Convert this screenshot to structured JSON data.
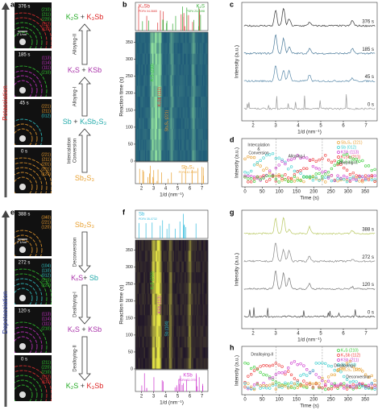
{
  "side": {
    "top": "Potassiation",
    "bottom": "Depotassiation"
  },
  "a": {
    "label": "a",
    "frames": [
      {
        "time": "376 s",
        "scale": "2 1/nm",
        "hkl": [
          "(210)",
          "(211)",
          "(220)",
          "(112)",
          "(110)"
        ],
        "colors": [
          "#3c3",
          "#3c3",
          "#3c3",
          "#e33",
          "#e33"
        ]
      },
      {
        "time": "185 s",
        "hkl": [
          "(113)",
          "(114)",
          "(111)",
          "(210)"
        ],
        "colors": [
          "#c3c",
          "#c3c",
          "#c3c",
          "#3c3"
        ]
      },
      {
        "time": "45 s",
        "hkl": [
          "(221)",
          "(211)",
          "(012)"
        ],
        "colors": [
          "#f0a030",
          "#f0a030",
          "#3cc"
        ]
      },
      {
        "time": "0 s",
        "hkl": [
          "(221)",
          "(211)",
          "(201)",
          "(101)",
          "(120)"
        ],
        "colors": [
          "#f0a030",
          "#f0a030",
          "#f0a030",
          "#f0a030",
          "#f0a030"
        ]
      }
    ],
    "stages": [
      [
        {
          "t": "K₂S",
          "c": "#2a2"
        },
        {
          "t": " + ",
          "c": "#333"
        },
        {
          "t": "K₃Sb",
          "c": "#d22"
        }
      ],
      [
        {
          "t": "KₓS",
          "c": "#a3a"
        },
        {
          "t": " + ",
          "c": "#333"
        },
        {
          "t": "KSb",
          "c": "#a3a"
        }
      ],
      [
        {
          "t": "Sb",
          "c": "#2aa"
        },
        {
          "t": " + ",
          "c": "#333"
        },
        {
          "t": "KₓSb₂S₃",
          "c": "#2aa"
        }
      ],
      [
        {
          "t": "Sb₂S₃",
          "c": "#e8a030"
        }
      ]
    ],
    "transitions": [
      [
        "Alloying-II"
      ],
      [
        "Alloying-I"
      ],
      [
        "Intercalation",
        "Conversion"
      ]
    ]
  },
  "b": {
    "label": "b",
    "ref_top": [
      {
        "name": "K₃Sb",
        "pdf": "PDF# 04-0665",
        "color": "#d33"
      },
      {
        "name": "K₂S",
        "pdf": "PDF# 23-0498",
        "color": "#3a3"
      }
    ],
    "ref_bottom": {
      "name": "Sb₂S₃",
      "pdf": "PDF# 42-1393",
      "color": "#e8a030"
    },
    "ylabel": "Reaction time (s)",
    "yticks": [
      0,
      50,
      100,
      150,
      200,
      250,
      300,
      350
    ],
    "xlabel": "1/d (nm⁻¹)",
    "xticks": [
      2,
      3,
      4,
      5,
      6,
      7
    ],
    "annotations": [
      {
        "text": "K₂S (210)",
        "color": "#3c3"
      },
      {
        "text": "K₃Sb (112)",
        "color": "#e33"
      },
      {
        "text": "Sb₂S₃ (221)",
        "color": "#f0a030"
      }
    ]
  },
  "c": {
    "label": "c",
    "ylabel": "Intensity (a.u.)",
    "xlabel": "1/d (nm⁻¹)",
    "xticks": [
      2,
      3,
      4,
      5,
      6,
      7
    ],
    "curves": [
      {
        "name": "376 s",
        "color": "#333"
      },
      {
        "name": "185 s",
        "color": "#4a7a9a"
      },
      {
        "name": "45 s",
        "color": "#5a8aaa"
      },
      {
        "name": "0 s",
        "color": "#999"
      }
    ]
  },
  "d": {
    "label": "d",
    "ylabel": "Intensity (a.u.)",
    "xlabel": "Time (s)",
    "xticks": [
      0,
      50,
      100,
      150,
      200,
      250,
      300,
      350
    ],
    "legend": [
      {
        "name": "Sb₂S₃ (221)",
        "color": "#e8a030"
      },
      {
        "name": "Sb (012)",
        "color": "#3cc"
      },
      {
        "name": "KSb (113)",
        "color": "#c3c"
      },
      {
        "name": "K₃Sb (211)",
        "color": "#e33"
      },
      {
        "name": "K₂S (210)",
        "color": "#3c3"
      }
    ],
    "annotations": [
      "Intercalation",
      "&",
      "Conversion",
      "Alloying-I",
      "Alloying-II"
    ]
  },
  "e": {
    "label": "e",
    "frames": [
      {
        "time": "388 s",
        "scale": "2 1/nm",
        "hkl": [
          "(340)",
          "(221)",
          "(120)"
        ],
        "colors": [
          "#f0a030",
          "#f0a030",
          "#f0a030"
        ]
      },
      {
        "time": "272 s",
        "hkl": [
          "(104)",
          "(110)",
          "(012)",
          "(210)",
          "(220)"
        ],
        "colors": [
          "#3cc",
          "#3cc",
          "#3cc",
          "#3c3",
          "#3c3"
        ]
      },
      {
        "time": "120 s",
        "hkl": [
          "(113)",
          "(114)",
          "(111)",
          "(210)"
        ],
        "colors": [
          "#c3c",
          "#c3c",
          "#c3c",
          "#3c3"
        ]
      },
      {
        "time": "0 s",
        "hkl": [
          "(211)",
          "(220)",
          "(210)",
          "(112)",
          "(110)"
        ],
        "colors": [
          "#3c3",
          "#3c3",
          "#3c3",
          "#e33",
          "#e33"
        ]
      }
    ],
    "stages": [
      [
        {
          "t": "Sb₂S₃",
          "c": "#e8a030"
        }
      ],
      [
        {
          "t": "KₓS",
          "c": "#a3a"
        },
        {
          "t": "+ ",
          "c": "#333"
        },
        {
          "t": "Sb",
          "c": "#2aa"
        }
      ],
      [
        {
          "t": "KₓS",
          "c": "#a3a"
        },
        {
          "t": " + ",
          "c": "#333"
        },
        {
          "t": "KSb",
          "c": "#a3a"
        }
      ],
      [
        {
          "t": "K₂S",
          "c": "#2a2"
        },
        {
          "t": " + ",
          "c": "#333"
        },
        {
          "t": "K₃Sb",
          "c": "#d22"
        }
      ]
    ],
    "transitions": [
      [
        "Deconversion"
      ],
      [
        "Dealloying-I"
      ],
      [
        "Dealloying-II"
      ]
    ]
  },
  "f": {
    "label": "f",
    "ref_top": [
      {
        "name": "Sb",
        "pdf": "PDF# 35-0732",
        "color": "#3bd"
      }
    ],
    "ref_bottom": {
      "name": "KSb",
      "pdf": "PDF# 32-0791",
      "color": "#c3c"
    },
    "ylabel": "Reaction time (s)",
    "yticks": [
      0,
      50,
      100,
      150,
      200,
      250,
      300,
      350
    ],
    "xlabel": "1/d (nm⁻¹)",
    "xticks": [
      2,
      3,
      4,
      5,
      6,
      7
    ],
    "annotations": [
      {
        "text": "K₂S (210)",
        "color": "#3c3"
      },
      {
        "text": "KSb (113)",
        "color": "#c3c"
      },
      {
        "text": "Sb (104)",
        "color": "#3cc"
      }
    ]
  },
  "g": {
    "label": "g",
    "ylabel": "Intensity (a.u.)",
    "xlabel": "1/d (nm⁻¹)",
    "xticks": [
      2,
      3,
      4,
      5,
      6,
      7
    ],
    "curves": [
      {
        "name": "388 s",
        "color": "#b8c860"
      },
      {
        "name": "272 s",
        "color": "#888"
      },
      {
        "name": "120 s",
        "color": "#777"
      },
      {
        "name": "0 s",
        "color": "#444"
      }
    ]
  },
  "h": {
    "label": "h",
    "ylabel": "Intensity (a.u.)",
    "xlabel": "Time (s)",
    "xticks": [
      0,
      50,
      100,
      150,
      200,
      250,
      300,
      350
    ],
    "legend": [
      {
        "name": "K₂S (210)",
        "color": "#3c3"
      },
      {
        "name": "K₃Sb (112)",
        "color": "#e33"
      },
      {
        "name": "KSb (211)",
        "color": "#c3c"
      },
      {
        "name": "Sb (104)",
        "color": "#3cc"
      },
      {
        "name": "Sb₂S₃ (221)",
        "color": "#e8a030"
      }
    ],
    "annotations": [
      "Dealloying-II",
      "Dealloying-I",
      "Deconversion"
    ]
  }
}
